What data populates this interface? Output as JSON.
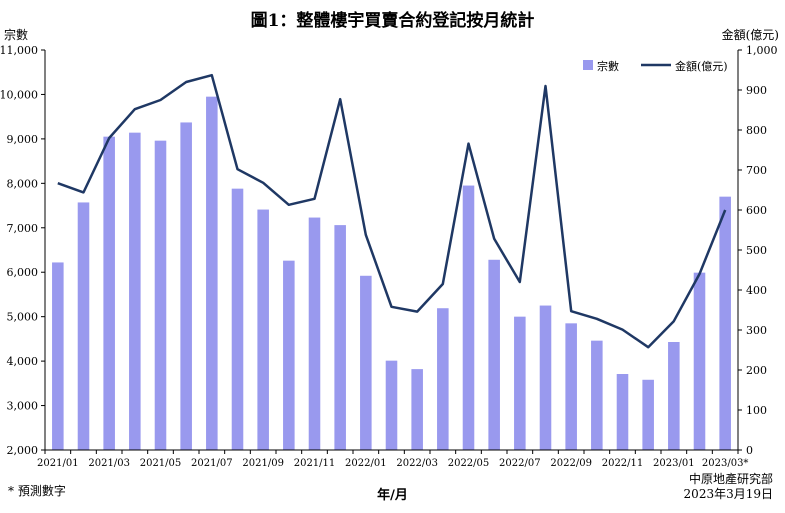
{
  "title": "圖1：整體樓宇買賣合約登記按月統計",
  "left_axis_unit": "宗數",
  "right_axis_unit": "金額(億元)",
  "footnote": "* 預測數字",
  "source_line1": "中原地產研究部",
  "source_line2": "2023年3月19日",
  "colors": {
    "bar": "#9999ee",
    "line": "#1f3864"
  },
  "chart_data": {
    "type": "bar",
    "title": "圖1：整體樓宇買賣合約登記按月統計",
    "xlabel": "年/月",
    "ylabel": "宗數",
    "y2label": "金額(億元)",
    "ylim": [
      2000,
      11000
    ],
    "y2lim": [
      0,
      1000
    ],
    "yticks": [
      2000,
      3000,
      4000,
      5000,
      6000,
      7000,
      8000,
      9000,
      10000,
      11000
    ],
    "y2ticks": [
      0,
      100,
      200,
      300,
      400,
      500,
      600,
      700,
      800,
      900,
      1000
    ],
    "yticklabels": [
      "2,000",
      "3,000",
      "4,000",
      "5,000",
      "6,000",
      "7,000",
      "8,000",
      "9,000",
      "10,000",
      "11,000"
    ],
    "y2ticklabels": [
      "0",
      "100",
      "200",
      "300",
      "400",
      "500",
      "600",
      "700",
      "800",
      "900",
      "1,000"
    ],
    "categories": [
      "2021/01",
      "2021/02",
      "2021/03",
      "2021/04",
      "2021/05",
      "2021/06",
      "2021/07",
      "2021/08",
      "2021/09",
      "2021/10",
      "2021/11",
      "2021/12",
      "2022/01",
      "2022/02",
      "2022/03",
      "2022/04",
      "2022/05",
      "2022/06",
      "2022/07",
      "2022/08",
      "2022/09",
      "2022/10",
      "2022/11",
      "2022/12",
      "2023/01",
      "2023/02",
      "2023/03"
    ],
    "xticklabels": [
      "2021/01",
      "2021/03",
      "2021/05",
      "2021/07",
      "2021/09",
      "2021/11",
      "2022/01",
      "2022/03",
      "2022/05",
      "2022/07",
      "2022/09",
      "2022/11",
      "2023/01",
      "2023/03*"
    ],
    "grid": false,
    "legend_position": "top-right",
    "series": [
      {
        "name": "宗數",
        "type": "bar",
        "axis": "left",
        "values": [
          6220,
          7570,
          9050,
          9140,
          8960,
          9370,
          9950,
          7880,
          7410,
          6260,
          7230,
          7060,
          5920,
          4010,
          3820,
          5190,
          7950,
          6280,
          5000,
          5250,
          4850,
          4460,
          3710,
          3580,
          4430,
          5990,
          7700
        ]
      },
      {
        "name": "金額(億元)",
        "type": "line",
        "axis": "right",
        "values": [
          667,
          644,
          780,
          852,
          875,
          920,
          937,
          702,
          668,
          613,
          628,
          877,
          538,
          358,
          346,
          415,
          766,
          528,
          420,
          910,
          347,
          328,
          301,
          257,
          322,
          440,
          600
        ]
      }
    ]
  }
}
